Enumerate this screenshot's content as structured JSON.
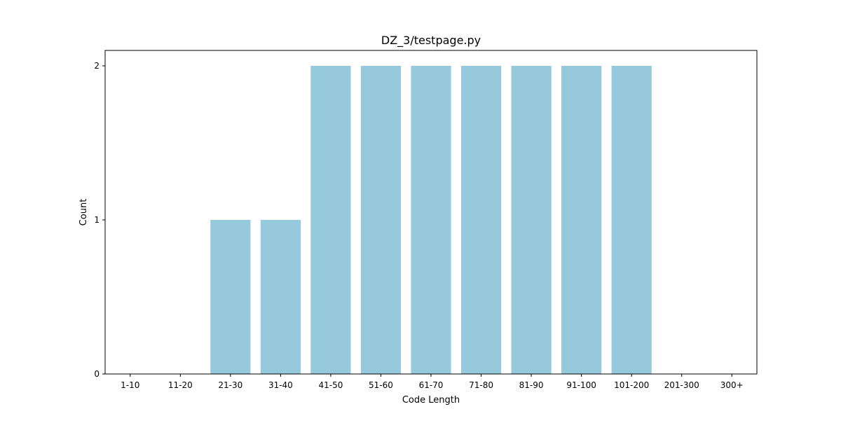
{
  "chart_data": {
    "type": "bar",
    "title": "DZ_3/testpage.py",
    "xlabel": "Code Length",
    "ylabel": "Count",
    "categories": [
      "1-10",
      "11-20",
      "21-30",
      "31-40",
      "41-50",
      "51-60",
      "61-70",
      "71-80",
      "81-90",
      "91-100",
      "101-200",
      "201-300",
      "300+"
    ],
    "values": [
      0,
      0,
      1,
      1,
      2,
      2,
      2,
      2,
      2,
      2,
      2,
      0,
      0
    ],
    "ylim": [
      0,
      2.1
    ],
    "yticks": [
      0,
      1,
      2
    ],
    "grid": false,
    "legend": "none",
    "bar_color": "#96c9dc"
  }
}
